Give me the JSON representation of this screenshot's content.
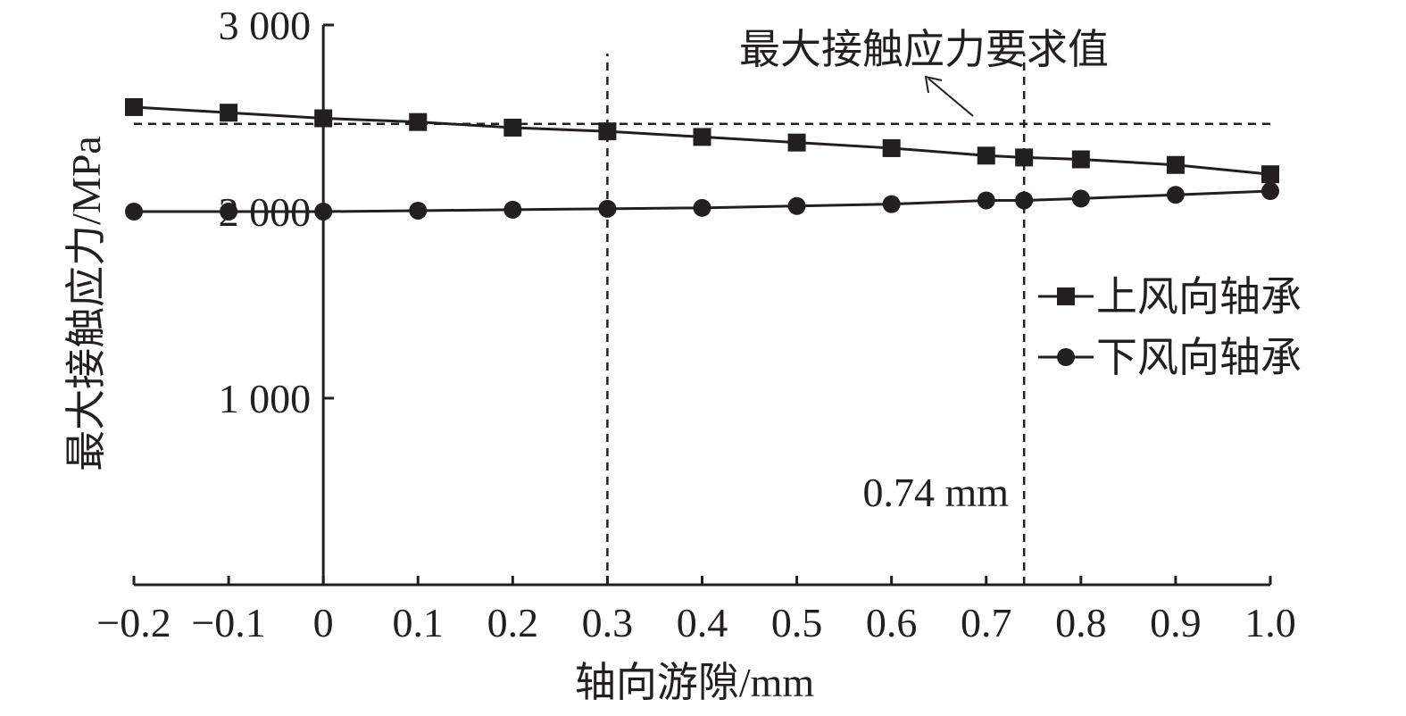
{
  "chart_data": {
    "type": "line",
    "xlabel": "轴向游隙/mm",
    "ylabel": "最大接触应力/MPa",
    "xlim": [
      -0.2,
      1.0
    ],
    "ylim": [
      0,
      3000
    ],
    "x_ticks": [
      -0.2,
      -0.1,
      0,
      0.1,
      0.2,
      0.3,
      0.4,
      0.5,
      0.6,
      0.7,
      0.8,
      0.9,
      1.0
    ],
    "x_tick_labels": [
      "−0.2",
      "−0.1",
      "0",
      "0.1",
      "0.2",
      "0.3",
      "0.4",
      "0.5",
      "0.6",
      "0.7",
      "0.8",
      "0.9",
      "1.0"
    ],
    "y_ticks": [
      1000,
      2000,
      3000
    ],
    "y_tick_labels": [
      "1 000",
      "2 000",
      "3 000"
    ],
    "grid": false,
    "legend_position": "right",
    "x": [
      -0.2,
      -0.1,
      0,
      0.1,
      0.2,
      0.3,
      0.4,
      0.5,
      0.6,
      0.7,
      0.74,
      0.8,
      0.9,
      1.0
    ],
    "series": [
      {
        "name": "上风向轴承",
        "marker": "square",
        "values": [
          2560,
          2530,
          2500,
          2480,
          2450,
          2430,
          2400,
          2370,
          2340,
          2300,
          2290,
          2280,
          2250,
          2200
        ]
      },
      {
        "name": "下风向轴承",
        "marker": "circle",
        "values": [
          2000,
          2000,
          2000,
          2005,
          2010,
          2015,
          2020,
          2030,
          2040,
          2060,
          2060,
          2070,
          2090,
          2110
        ]
      }
    ],
    "reference_lines": {
      "horizontal": {
        "y": 2470,
        "label": "最大接触应力要求值"
      },
      "vertical": [
        {
          "x": 0.3,
          "label": ""
        },
        {
          "x": 0.74,
          "label": "0.74 mm"
        }
      ]
    },
    "colors": {
      "line": "#231f20",
      "background": "#ffffff"
    }
  }
}
